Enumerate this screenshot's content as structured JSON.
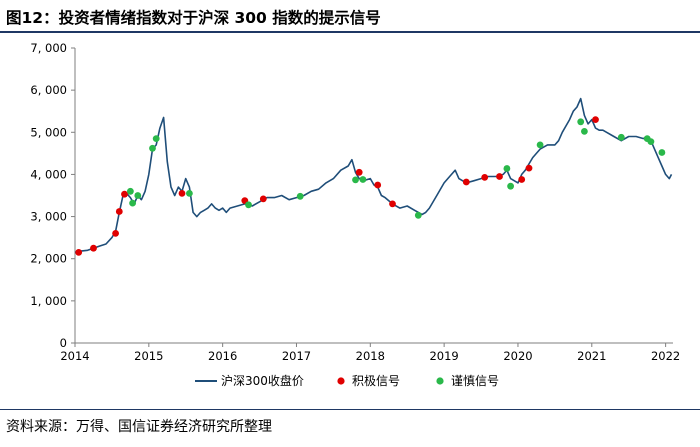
{
  "figure": {
    "title": "图12：投资者情绪指数对于沪深 300 指数的提示信号",
    "source": "资料来源：万得、国信证券经济研究所整理"
  },
  "chart_data": {
    "type": "line",
    "title": "图12：投资者情绪指数对于沪深 300 指数的提示信号",
    "xlabel": "",
    "ylabel": "",
    "xlim": [
      2014,
      2022.1
    ],
    "ylim": [
      0,
      7000
    ],
    "x_ticks": [
      2014,
      2015,
      2016,
      2017,
      2018,
      2019,
      2020,
      2021,
      2022
    ],
    "x_tick_labels": [
      "2014",
      "2015",
      "2016",
      "2017",
      "2018",
      "2019",
      "2020",
      "2021",
      "2022"
    ],
    "y_ticks": [
      0,
      1000,
      2000,
      3000,
      4000,
      5000,
      6000,
      7000
    ],
    "y_tick_labels": [
      "0",
      "1, 000",
      "2, 000",
      "3, 000",
      "4, 000",
      "5, 000",
      "6, 000",
      "7, 000"
    ],
    "grid": false,
    "legend_position": "bottom",
    "colors": {
      "line": "#1f4e79",
      "positive": "#e00000",
      "cautious": "#2ab84a",
      "axis": "#7f7f7f"
    },
    "series": [
      {
        "name": "沪深300收盘价",
        "kind": "line",
        "x": [
          2014.0,
          2014.08,
          2014.17,
          2014.25,
          2014.33,
          2014.42,
          2014.5,
          2014.55,
          2014.6,
          2014.65,
          2014.7,
          2014.75,
          2014.8,
          2014.85,
          2014.9,
          2014.95,
          2015.0,
          2015.05,
          2015.1,
          2015.15,
          2015.2,
          2015.25,
          2015.3,
          2015.35,
          2015.4,
          2015.45,
          2015.5,
          2015.55,
          2015.6,
          2015.65,
          2015.7,
          2015.75,
          2015.8,
          2015.85,
          2015.9,
          2015.95,
          2016.0,
          2016.05,
          2016.1,
          2016.2,
          2016.3,
          2016.4,
          2016.5,
          2016.6,
          2016.7,
          2016.8,
          2016.9,
          2017.0,
          2017.1,
          2017.2,
          2017.3,
          2017.4,
          2017.5,
          2017.6,
          2017.7,
          2017.75,
          2017.8,
          2017.85,
          2017.9,
          2018.0,
          2018.05,
          2018.1,
          2018.15,
          2018.2,
          2018.3,
          2018.4,
          2018.5,
          2018.6,
          2018.7,
          2018.75,
          2018.8,
          2018.9,
          2019.0,
          2019.05,
          2019.1,
          2019.15,
          2019.2,
          2019.3,
          2019.4,
          2019.5,
          2019.6,
          2019.7,
          2019.8,
          2019.85,
          2019.9,
          2020.0,
          2020.05,
          2020.1,
          2020.15,
          2020.2,
          2020.3,
          2020.4,
          2020.5,
          2020.55,
          2020.6,
          2020.7,
          2020.75,
          2020.8,
          2020.85,
          2020.9,
          2020.95,
          2021.0,
          2021.05,
          2021.1,
          2021.15,
          2021.2,
          2021.3,
          2021.4,
          2021.5,
          2021.6,
          2021.7,
          2021.75,
          2021.8,
          2021.85,
          2021.9,
          2021.95,
          2022.0,
          2022.05,
          2022.08
        ],
        "y": [
          2150,
          2180,
          2200,
          2250,
          2300,
          2350,
          2500,
          2650,
          3100,
          3500,
          3550,
          3450,
          3300,
          3500,
          3400,
          3600,
          4000,
          4600,
          4700,
          5100,
          5350,
          4300,
          3700,
          3500,
          3700,
          3600,
          3900,
          3700,
          3100,
          3000,
          3100,
          3150,
          3200,
          3300,
          3200,
          3150,
          3200,
          3100,
          3200,
          3250,
          3300,
          3250,
          3350,
          3450,
          3450,
          3500,
          3400,
          3450,
          3500,
          3600,
          3650,
          3800,
          3900,
          4100,
          4200,
          4350,
          4050,
          3900,
          3850,
          3900,
          3750,
          3700,
          3500,
          3450,
          3300,
          3200,
          3250,
          3150,
          3050,
          3100,
          3200,
          3500,
          3800,
          3900,
          4000,
          4100,
          3900,
          3800,
          3850,
          3900,
          3950,
          3950,
          4000,
          4100,
          3900,
          3800,
          4000,
          4100,
          4250,
          4400,
          4600,
          4700,
          4700,
          4800,
          5000,
          5300,
          5500,
          5600,
          5800,
          5400,
          5200,
          5300,
          5100,
          5050,
          5050,
          5000,
          4900,
          4800,
          4900,
          4900,
          4850,
          4900,
          4800,
          4600,
          4400,
          4200,
          4000,
          3900,
          4000
        ]
      },
      {
        "name": "积极信号",
        "kind": "markers",
        "x": [
          2014.05,
          2014.25,
          2014.55,
          2014.6,
          2014.67,
          2015.45,
          2016.3,
          2016.55,
          2017.85,
          2018.1,
          2018.3,
          2019.3,
          2019.55,
          2019.75,
          2020.05,
          2020.15,
          2021.05
        ],
        "y": [
          2150,
          2250,
          2600,
          3120,
          3530,
          3550,
          3380,
          3420,
          4050,
          3750,
          3300,
          3820,
          3930,
          3950,
          3880,
          4150,
          5300
        ]
      },
      {
        "name": "谨慎信号",
        "kind": "markers",
        "x": [
          2014.75,
          2014.78,
          2014.85,
          2015.05,
          2015.1,
          2015.55,
          2016.35,
          2017.05,
          2017.8,
          2017.9,
          2018.65,
          2019.85,
          2019.9,
          2020.3,
          2020.85,
          2020.9,
          2021.4,
          2021.75,
          2021.8,
          2021.95
        ],
        "y": [
          3600,
          3320,
          3500,
          4620,
          4850,
          3550,
          3280,
          3480,
          3870,
          3880,
          3030,
          4140,
          3720,
          4700,
          5250,
          5020,
          4880,
          4850,
          4780,
          4520
        ]
      }
    ]
  }
}
